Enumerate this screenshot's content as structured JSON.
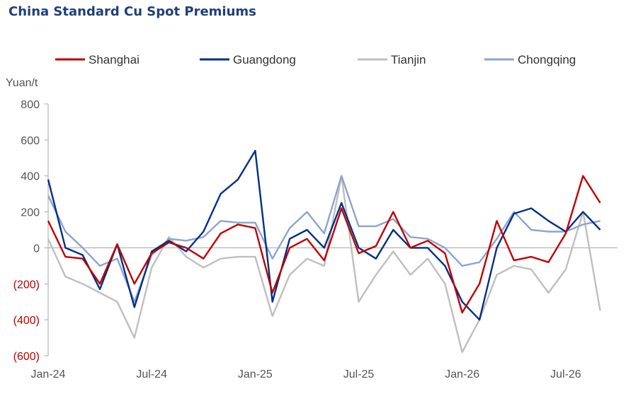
{
  "chart_data": {
    "type": "line",
    "title": "China Standard Cu Spot Premiums",
    "ylabel": "Yuan/t",
    "ylim": [
      -600,
      800
    ],
    "yticks": [
      {
        "value": 800,
        "label": "800"
      },
      {
        "value": 600,
        "label": "600"
      },
      {
        "value": 400,
        "label": "400"
      },
      {
        "value": 200,
        "label": "200"
      },
      {
        "value": 0,
        "label": "0"
      },
      {
        "value": -200,
        "label": "(200)"
      },
      {
        "value": -400,
        "label": "(400)"
      },
      {
        "value": -600,
        "label": "(600)"
      }
    ],
    "xlim": [
      "2024-01",
      "2026-10"
    ],
    "xticks": [
      {
        "x": "2024-01",
        "label": "Jan-24"
      },
      {
        "x": "2024-07",
        "label": "Jul-24"
      },
      {
        "x": "2025-01",
        "label": "Jan-25"
      },
      {
        "x": "2025-07",
        "label": "Jul-25"
      },
      {
        "x": "2026-01",
        "label": "Jan-26"
      },
      {
        "x": "2026-07",
        "label": "Jul-26"
      }
    ],
    "legend_position": "top",
    "x": [
      "2024-01",
      "2024-02",
      "2024-03",
      "2024-04",
      "2024-05",
      "2024-06",
      "2024-07",
      "2024-08",
      "2024-09",
      "2024-10",
      "2024-11",
      "2024-12",
      "2025-01",
      "2025-02",
      "2025-03",
      "2025-04",
      "2025-05",
      "2025-06",
      "2025-07",
      "2025-08",
      "2025-09",
      "2025-10",
      "2025-11",
      "2025-12",
      "2026-01",
      "2026-02",
      "2026-03",
      "2026-04",
      "2026-05",
      "2026-06",
      "2026-07",
      "2026-08",
      "2026-09"
    ],
    "series": [
      {
        "name": "Shanghai",
        "color": "#c00000",
        "values": [
          150,
          -50,
          -60,
          -200,
          20,
          -200,
          -30,
          30,
          0,
          -60,
          80,
          130,
          110,
          -250,
          0,
          50,
          -70,
          220,
          -30,
          10,
          200,
          0,
          40,
          -30,
          -360,
          -200,
          150,
          -70,
          -50,
          -80,
          80,
          400,
          250
        ]
      },
      {
        "name": "Guangdong",
        "color": "#003087",
        "values": [
          380,
          0,
          -40,
          -230,
          20,
          -330,
          -20,
          40,
          -20,
          90,
          300,
          380,
          540,
          -300,
          50,
          100,
          0,
          250,
          0,
          -60,
          100,
          0,
          0,
          -100,
          -300,
          -400,
          0,
          190,
          220,
          150,
          90,
          200,
          100
        ]
      },
      {
        "name": "Tianjin",
        "color": "#bfbfbf",
        "values": [
          50,
          -160,
          -200,
          -250,
          -300,
          -500,
          -110,
          60,
          -50,
          -110,
          -60,
          -50,
          -50,
          -380,
          -150,
          -60,
          -100,
          400,
          -300,
          -150,
          -20,
          -150,
          -60,
          -200,
          -580,
          -400,
          -150,
          -100,
          -120,
          -250,
          -120,
          200,
          -350
        ]
      },
      {
        "name": "Chongqing",
        "color": "#8ea4cf",
        "values": [
          290,
          90,
          0,
          -100,
          -60,
          -300,
          -40,
          50,
          40,
          60,
          150,
          140,
          140,
          -60,
          110,
          200,
          80,
          400,
          120,
          120,
          160,
          60,
          50,
          0,
          -100,
          -80,
          50,
          200,
          100,
          90,
          90,
          130,
          150
        ]
      }
    ]
  }
}
